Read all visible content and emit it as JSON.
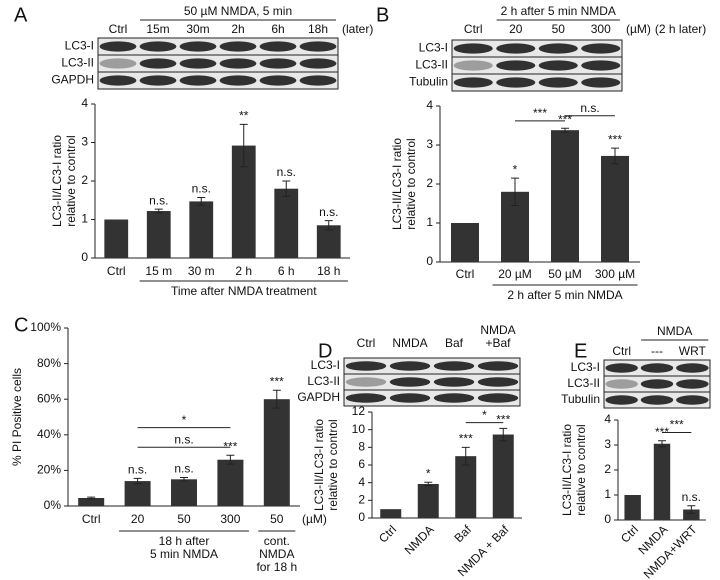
{
  "chart_data": [
    {
      "type": "bar",
      "panel_label": "A",
      "color": "#333333",
      "blot": {
        "header": "50 µM NMDA, 5 min",
        "header_span": [
          1,
          5
        ],
        "lanes": [
          "Ctrl",
          "15m",
          "30m",
          "2h",
          "6h",
          "18h"
        ],
        "suffixes": [
          "(later)"
        ],
        "rows": [
          "LC3-I",
          "LC3-II",
          "GAPDH"
        ]
      },
      "ylabel": [
        "LC3-II/LC3-I ratio",
        "relative to control"
      ],
      "categories": [
        "Ctrl",
        "15 m",
        "30 m",
        "2 h",
        "6 h",
        "18 h"
      ],
      "values": [
        1,
        1.22,
        1.47,
        2.92,
        1.8,
        0.85
      ],
      "errors": [
        null,
        0.05,
        0.1,
        0.55,
        0.2,
        0.12
      ],
      "significance": [
        null,
        "n.s.",
        "n.s.",
        "**",
        "n.s.",
        "n.s."
      ],
      "xlabel": "Time after NMDA treatment",
      "xlabel_span": [
        1,
        5
      ],
      "ylim": [
        0,
        4
      ],
      "yticks": [
        0,
        1,
        2,
        3,
        4
      ]
    },
    {
      "type": "bar",
      "panel_label": "B",
      "color": "#333333",
      "blot": {
        "header": "2 h after 5 min NMDA",
        "header_span": [
          1,
          3
        ],
        "lanes": [
          "Ctrl",
          "20",
          "50",
          "300"
        ],
        "suffixes": [
          "(µM)",
          "(2 h later)"
        ],
        "rows": [
          "LC3-I",
          "LC3-II",
          "Tubulin"
        ]
      },
      "ylabel": [
        "LC3-II/LC3-I ratio",
        "relative to control"
      ],
      "categories": [
        "Ctrl",
        "20 µM",
        "50 µM",
        "300 µM"
      ],
      "values": [
        1,
        1.8,
        3.38,
        2.72
      ],
      "errors": [
        null,
        0.35,
        0.05,
        0.2
      ],
      "significance": [
        null,
        "*",
        "***",
        "***"
      ],
      "brackets": [
        {
          "from": 1,
          "to": 2,
          "y": 3.62,
          "label": "***"
        },
        {
          "from": 2,
          "to": 3,
          "y": 3.75,
          "label": "n.s."
        }
      ],
      "xlabel": "2 h after 5 min NMDA",
      "xlabel_span": [
        1,
        3
      ],
      "ylim": [
        0,
        4
      ],
      "yticks": [
        0,
        1,
        2,
        3,
        4
      ]
    },
    {
      "type": "bar",
      "panel_label": "C",
      "color": "#333333",
      "ylabel": [
        "% PI Positive cells"
      ],
      "categories": [
        "Ctrl",
        "20",
        "50",
        "300",
        "50"
      ],
      "x_unit": "(µM)",
      "values": [
        4.5,
        14,
        15,
        26,
        60
      ],
      "errors": [
        0.5,
        1.5,
        1,
        2.5,
        5
      ],
      "significance": [
        null,
        "n.s.",
        "n.s.",
        "***",
        "***"
      ],
      "brackets": [
        {
          "from": 1,
          "to": 3,
          "y": 33,
          "label": "n.s."
        },
        {
          "from": 1,
          "to": 3,
          "y": 44,
          "label": "*"
        }
      ],
      "x_groups": [
        {
          "lines": [
            "18 h after",
            "5 min NMDA"
          ],
          "from": 1,
          "to": 3
        },
        {
          "lines": [
            "cont.",
            "NMDA",
            "for 18 h"
          ],
          "from": 4,
          "to": 4
        }
      ],
      "ylim": [
        0,
        100
      ],
      "yticks": [
        {
          "value": 0,
          "label": "0%"
        },
        {
          "value": 20,
          "label": "20%"
        },
        {
          "value": 40,
          "label": "40%"
        },
        {
          "value": 60,
          "label": "60%"
        },
        {
          "value": 80,
          "label": "80%"
        },
        {
          "value": 100,
          "label": "100%"
        }
      ]
    },
    {
      "type": "bar",
      "panel_label": "D",
      "color": "#333333",
      "blot": {
        "lanes": [
          "Ctrl",
          "NMDA",
          "Baf",
          [
            "NMDA",
            "+Baf"
          ]
        ],
        "rows": [
          "LC3-I",
          "LC3-II",
          "GAPDH"
        ]
      },
      "ylabel": [
        "LC3-II/LC3-I ratio",
        "relative to control"
      ],
      "categories": [
        "Ctrl",
        "NMDA",
        "Baf",
        "NMDA + Baf"
      ],
      "values": [
        1,
        3.85,
        7,
        9.45
      ],
      "errors": [
        null,
        0.2,
        1,
        0.7
      ],
      "significance": [
        null,
        "*",
        "***",
        "***"
      ],
      "brackets": [
        {
          "from": 2,
          "to": 3,
          "y": 10.8,
          "label": "*"
        }
      ],
      "ylim": [
        0,
        12
      ],
      "yticks": [
        0,
        2,
        4,
        6,
        8,
        10,
        12
      ]
    },
    {
      "type": "bar",
      "panel_label": "E",
      "color": "#333333",
      "blot": {
        "header": "NMDA",
        "header_span": [
          1,
          2
        ],
        "lanes": [
          "Ctrl",
          "---",
          "WRT"
        ],
        "rows": [
          "LC3-I",
          "LC3-II",
          "Tubulin"
        ]
      },
      "ylabel": [
        "LC3-II/LC3-I ratio",
        "relative to control"
      ],
      "categories": [
        "Ctrl",
        "NMDA",
        "NMDA+WRT"
      ],
      "values": [
        1,
        3.05,
        0.42
      ],
      "errors": [
        null,
        0.12,
        0.15
      ],
      "significance": [
        null,
        "***",
        "n.s."
      ],
      "brackets": [
        {
          "from": 1,
          "to": 2,
          "y": 3.5,
          "label": "***"
        }
      ],
      "ylim": [
        0,
        4
      ],
      "yticks": [
        0,
        1,
        2,
        3,
        4
      ]
    }
  ]
}
